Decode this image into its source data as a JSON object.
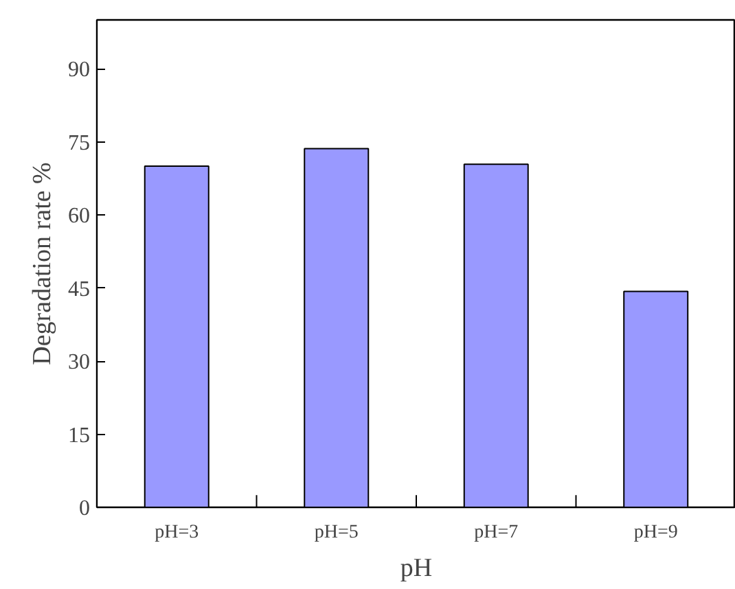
{
  "chart_data": {
    "type": "bar",
    "xlabel": "pH",
    "ylabel": "Degradation rate %",
    "categories": [
      "pH=3",
      "pH=5",
      "pH=7",
      "pH=9"
    ],
    "values": [
      70,
      73.6,
      70.4,
      44.3
    ],
    "color": "#9999ff",
    "ylim": [
      0,
      100
    ],
    "yticks": [
      0,
      15,
      30,
      45,
      60,
      75,
      90
    ],
    "grid": false
  }
}
